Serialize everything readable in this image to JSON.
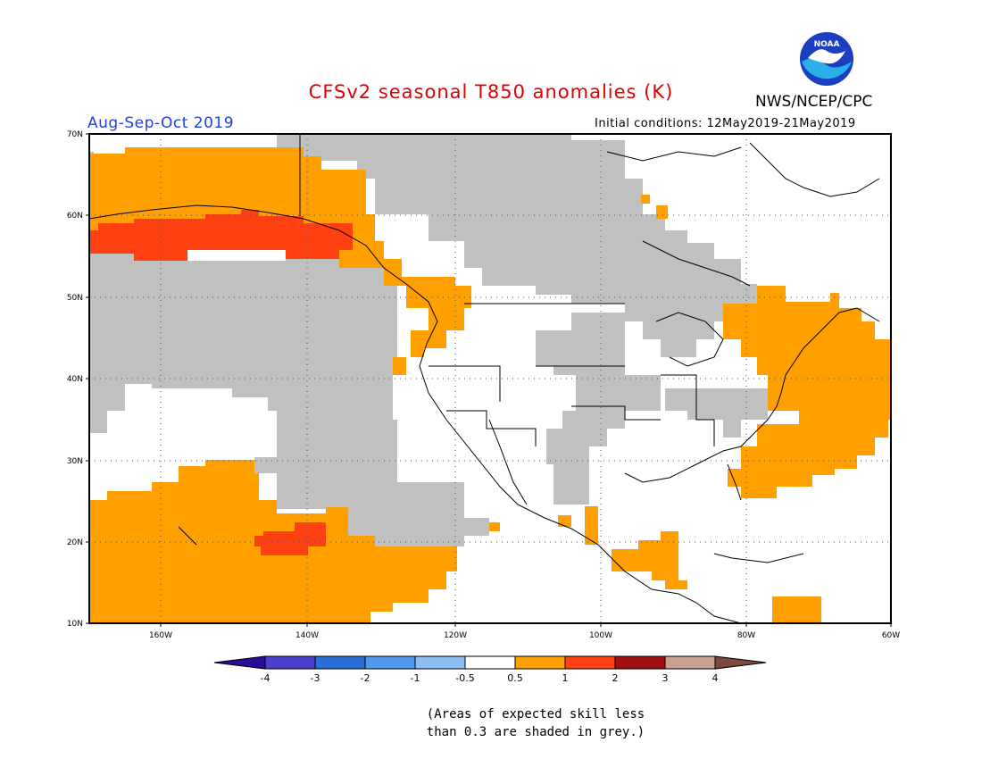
{
  "title": "CFSv2 seasonal T850 anomalies (K)",
  "season": "Aug-Sep-Oct 2019",
  "initial_conditions": "Initial conditions: 12May2019-21May2019",
  "agency": "NWS/NCEP/CPC",
  "logo_text": "NOAA",
  "note_line1": "(Areas of expected skill less",
  "note_line2": "than 0.3 are shaded in grey.)",
  "lat_labels": [
    "70N",
    "60N",
    "50N",
    "40N",
    "30N",
    "20N",
    "10N"
  ],
  "lon_labels": [
    "160W",
    "140W",
    "120W",
    "100W",
    "80W",
    "60W"
  ],
  "colorbar": {
    "labels": [
      "-4",
      "-3",
      "-2",
      "-1",
      "-0.5",
      "0.5",
      "1",
      "2",
      "3",
      "4"
    ],
    "colors": [
      "#2a0a9a",
      "#4a3fd0",
      "#2a6fd8",
      "#4f98ee",
      "#8cbcf2",
      "#ffffff",
      "#ff9f00",
      "#ff4010",
      "#a01010",
      "#c8a090",
      "#7a4a3a"
    ]
  },
  "colors": {
    "grey": "#c0c0c0",
    "orange": "#ff9f00",
    "red": "#ff4010"
  }
}
